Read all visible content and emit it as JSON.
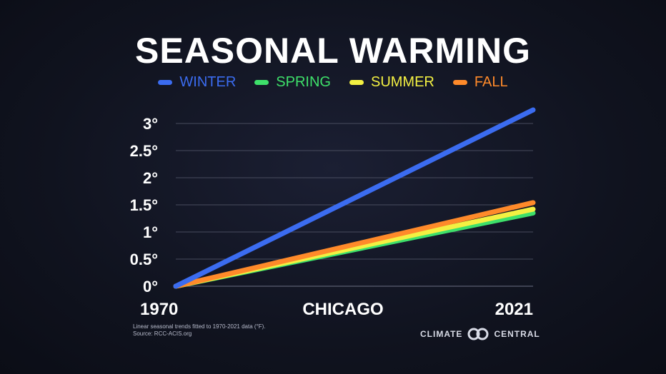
{
  "title": "SEASONAL WARMING",
  "footnote": {
    "line1": "Linear seasonal trends fitted to 1970-2021 data (°F).",
    "line2": "Source: RCC-ACIS.org"
  },
  "logo": {
    "left_text": "CLIMATE",
    "right_text": "CENTRAL",
    "icon": "double-ring-icon"
  },
  "chart_data": {
    "type": "line",
    "title": "SEASONAL WARMING",
    "xlabel": "CHICAGO",
    "ylabel": "",
    "x_tick_labels": [
      "1970",
      "2021"
    ],
    "x": [
      1970,
      2021
    ],
    "y_tick_values": [
      0,
      0.5,
      1,
      1.5,
      2,
      2.5,
      3
    ],
    "y_tick_labels": [
      "0°",
      "0.5°",
      "1°",
      "1.5°",
      "2°",
      "2.5°",
      "3°"
    ],
    "xlim": [
      1970,
      2021
    ],
    "ylim": [
      0,
      3.4
    ],
    "grid": true,
    "legend_position": "top-center",
    "series": [
      {
        "name": "WINTER",
        "color": "#3b6cf0",
        "values": [
          0,
          3.25
        ]
      },
      {
        "name": "SPRING",
        "color": "#3ee06a",
        "values": [
          0,
          1.35
        ]
      },
      {
        "name": "SUMMER",
        "color": "#f3f042",
        "values": [
          0,
          1.42
        ]
      },
      {
        "name": "FALL",
        "color": "#ff8a2a",
        "values": [
          0,
          1.54
        ]
      }
    ],
    "draw_order": [
      "SPRING",
      "SUMMER",
      "FALL",
      "WINTER"
    ]
  }
}
